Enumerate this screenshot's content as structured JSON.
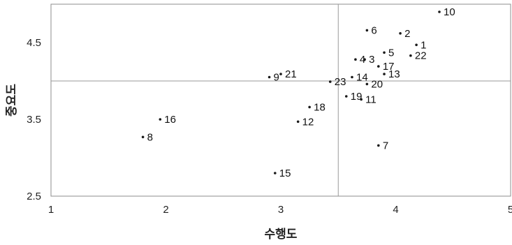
{
  "chart_data": {
    "type": "scatter",
    "title": "",
    "xlabel": "수행도",
    "ylabel": "중요도",
    "xlim": [
      1,
      5
    ],
    "ylim": [
      2.5,
      5.0
    ],
    "x_ticks": [
      "1",
      "2",
      "3",
      "4",
      "5"
    ],
    "y_ticks": [
      "2.5",
      "3.5",
      "4.5"
    ],
    "reference_lines": {
      "x": 3.5,
      "y": 4.0
    },
    "grid": false,
    "colors": {
      "point": "#1a1a1a",
      "reference_line": "#9a9a9a",
      "frame": "#8c8c8c"
    },
    "points": [
      {
        "label": "1",
        "x": 4.18,
        "y": 4.47
      },
      {
        "label": "2",
        "x": 4.04,
        "y": 4.62
      },
      {
        "label": "3",
        "x": 3.73,
        "y": 4.28
      },
      {
        "label": "4",
        "x": 3.65,
        "y": 4.28
      },
      {
        "label": "5",
        "x": 3.9,
        "y": 4.37
      },
      {
        "label": "6",
        "x": 3.75,
        "y": 4.66
      },
      {
        "label": "7",
        "x": 3.85,
        "y": 3.16
      },
      {
        "label": "8",
        "x": 1.8,
        "y": 3.27
      },
      {
        "label": "9",
        "x": 2.9,
        "y": 4.05
      },
      {
        "label": "10",
        "x": 4.38,
        "y": 4.9
      },
      {
        "label": "11",
        "x": 3.7,
        "y": 3.76
      },
      {
        "label": "12",
        "x": 3.15,
        "y": 3.47
      },
      {
        "label": "13",
        "x": 3.9,
        "y": 4.09
      },
      {
        "label": "14",
        "x": 3.62,
        "y": 4.05
      },
      {
        "label": "15",
        "x": 2.95,
        "y": 2.8
      },
      {
        "label": "16",
        "x": 1.95,
        "y": 3.5
      },
      {
        "label": "17",
        "x": 3.85,
        "y": 4.19
      },
      {
        "label": "18",
        "x": 3.25,
        "y": 3.66
      },
      {
        "label": "19",
        "x": 3.57,
        "y": 3.8
      },
      {
        "label": "20",
        "x": 3.75,
        "y": 3.96
      },
      {
        "label": "21",
        "x": 3.0,
        "y": 4.09
      },
      {
        "label": "22",
        "x": 4.13,
        "y": 4.33
      },
      {
        "label": "23",
        "x": 3.43,
        "y": 3.99
      }
    ]
  }
}
